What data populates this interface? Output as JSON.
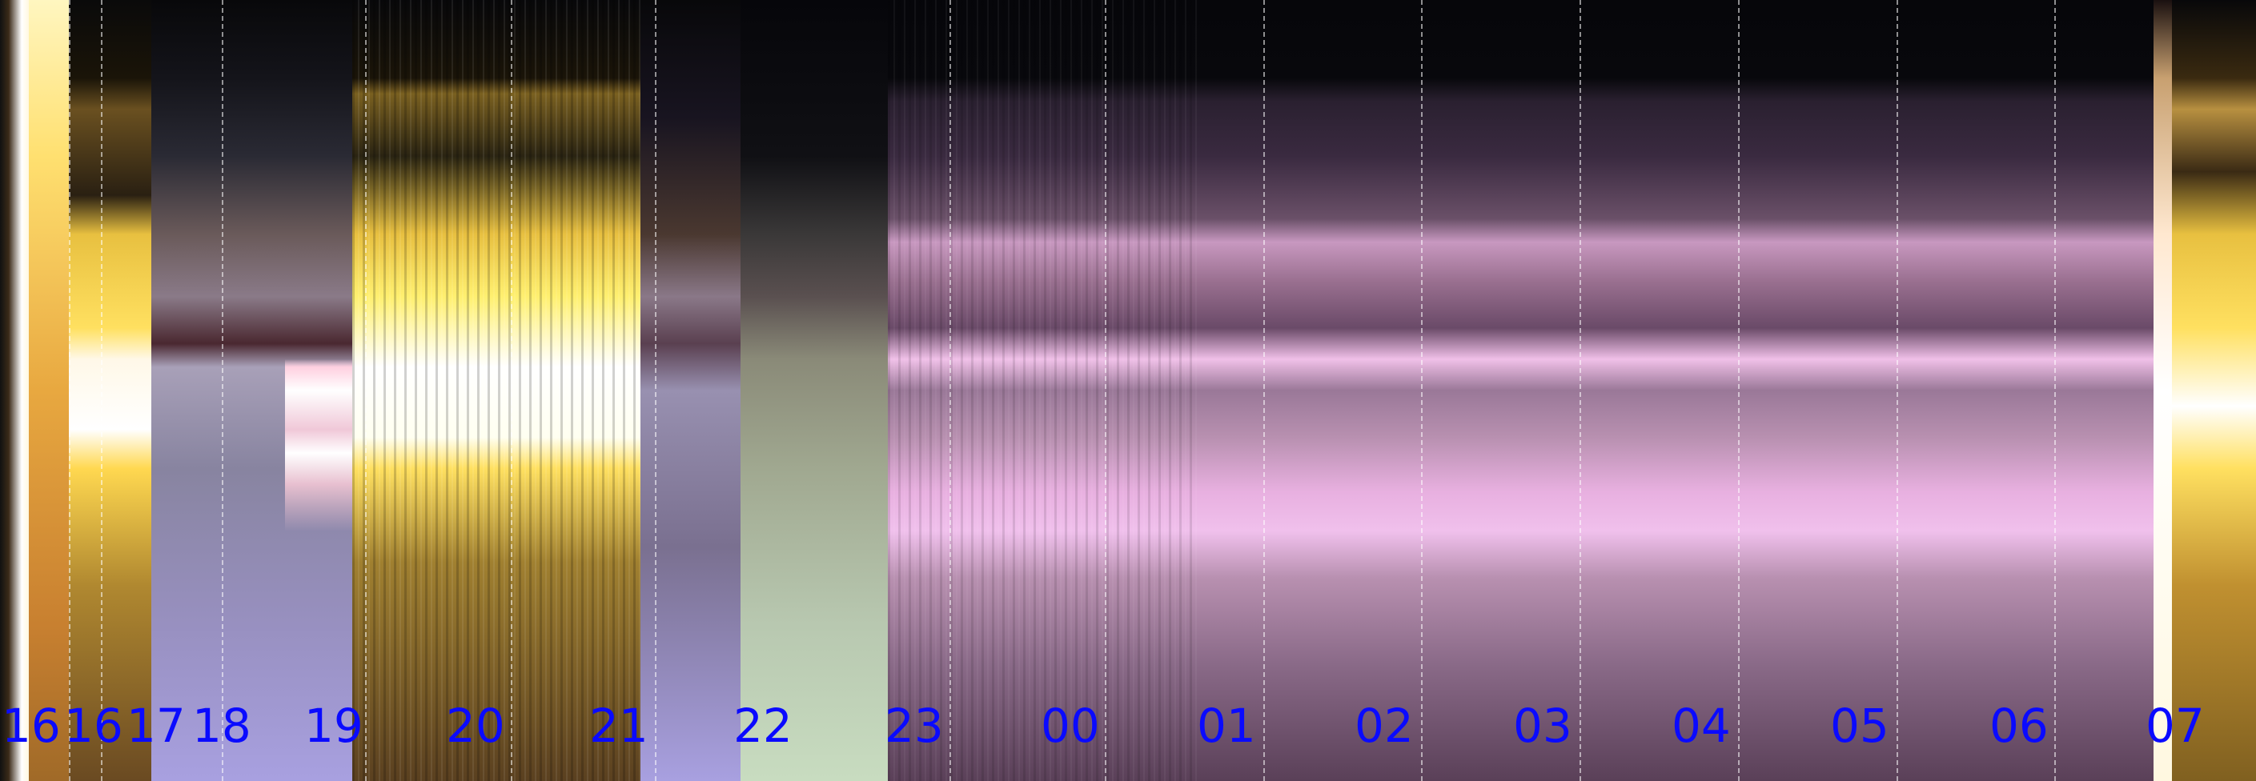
{
  "image": {
    "type": "keogram",
    "hour_labels": [
      {
        "text": "16"
      },
      {
        "text": "16"
      },
      {
        "text": "17"
      },
      {
        "text": "18"
      },
      {
        "text": "19"
      },
      {
        "text": "20"
      },
      {
        "text": "21"
      },
      {
        "text": "22"
      },
      {
        "text": "23"
      },
      {
        "text": "00"
      },
      {
        "text": "01"
      },
      {
        "text": "02"
      },
      {
        "text": "03"
      },
      {
        "text": "04"
      },
      {
        "text": "05"
      },
      {
        "text": "06"
      },
      {
        "text": "07"
      }
    ],
    "label_color": "#0a0aff"
  }
}
